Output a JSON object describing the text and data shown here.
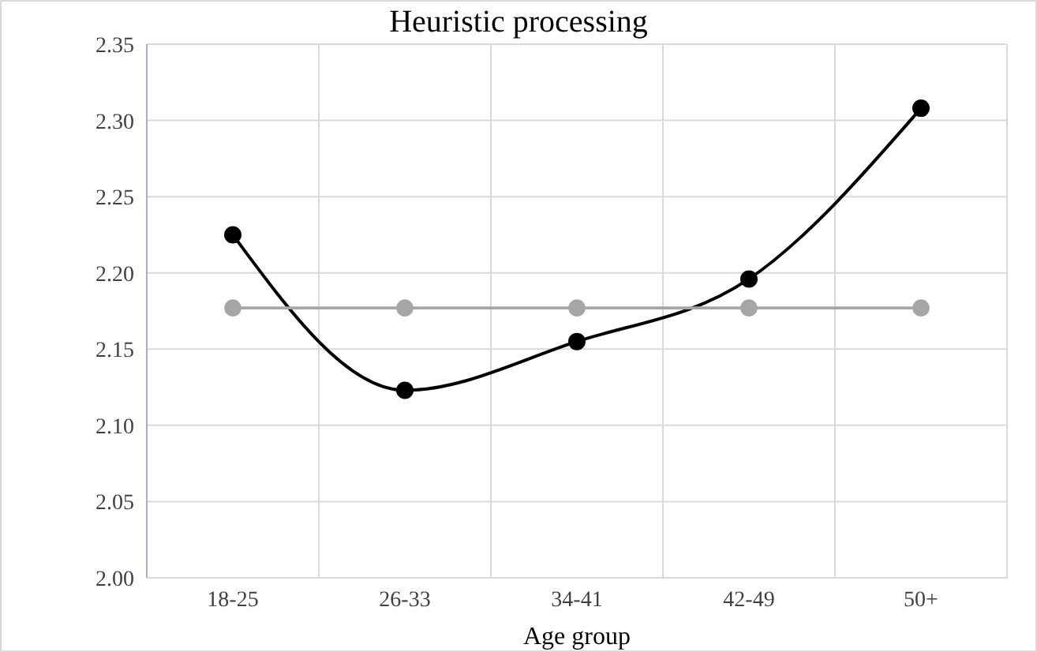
{
  "chart_data": {
    "type": "line",
    "title": "Heuristic processing",
    "xlabel": "Age group",
    "categories": [
      "18-25",
      "26-33",
      "34-41",
      "42-49",
      "50+"
    ],
    "series": [
      {
        "color": "#000000",
        "values": [
          2.225,
          2.123,
          2.155,
          2.196,
          2.308
        ]
      },
      {
        "color": "#a6a6a6",
        "values": [
          2.177,
          2.177,
          2.177,
          2.177,
          2.177
        ]
      }
    ],
    "ylim": [
      2.0,
      2.35
    ],
    "yticks": [
      {
        "value": 2.0,
        "label": "2.00"
      },
      {
        "value": 2.05,
        "label": "2.05"
      },
      {
        "value": 2.1,
        "label": "2.10"
      },
      {
        "value": 2.15,
        "label": "2.15"
      },
      {
        "value": 2.2,
        "label": "2.20"
      },
      {
        "value": 2.25,
        "label": "2.25"
      },
      {
        "value": 2.3,
        "label": "2.30"
      },
      {
        "value": 2.35,
        "label": "2.35"
      }
    ],
    "grid": true,
    "marker": "circle",
    "line_style": "solid"
  }
}
